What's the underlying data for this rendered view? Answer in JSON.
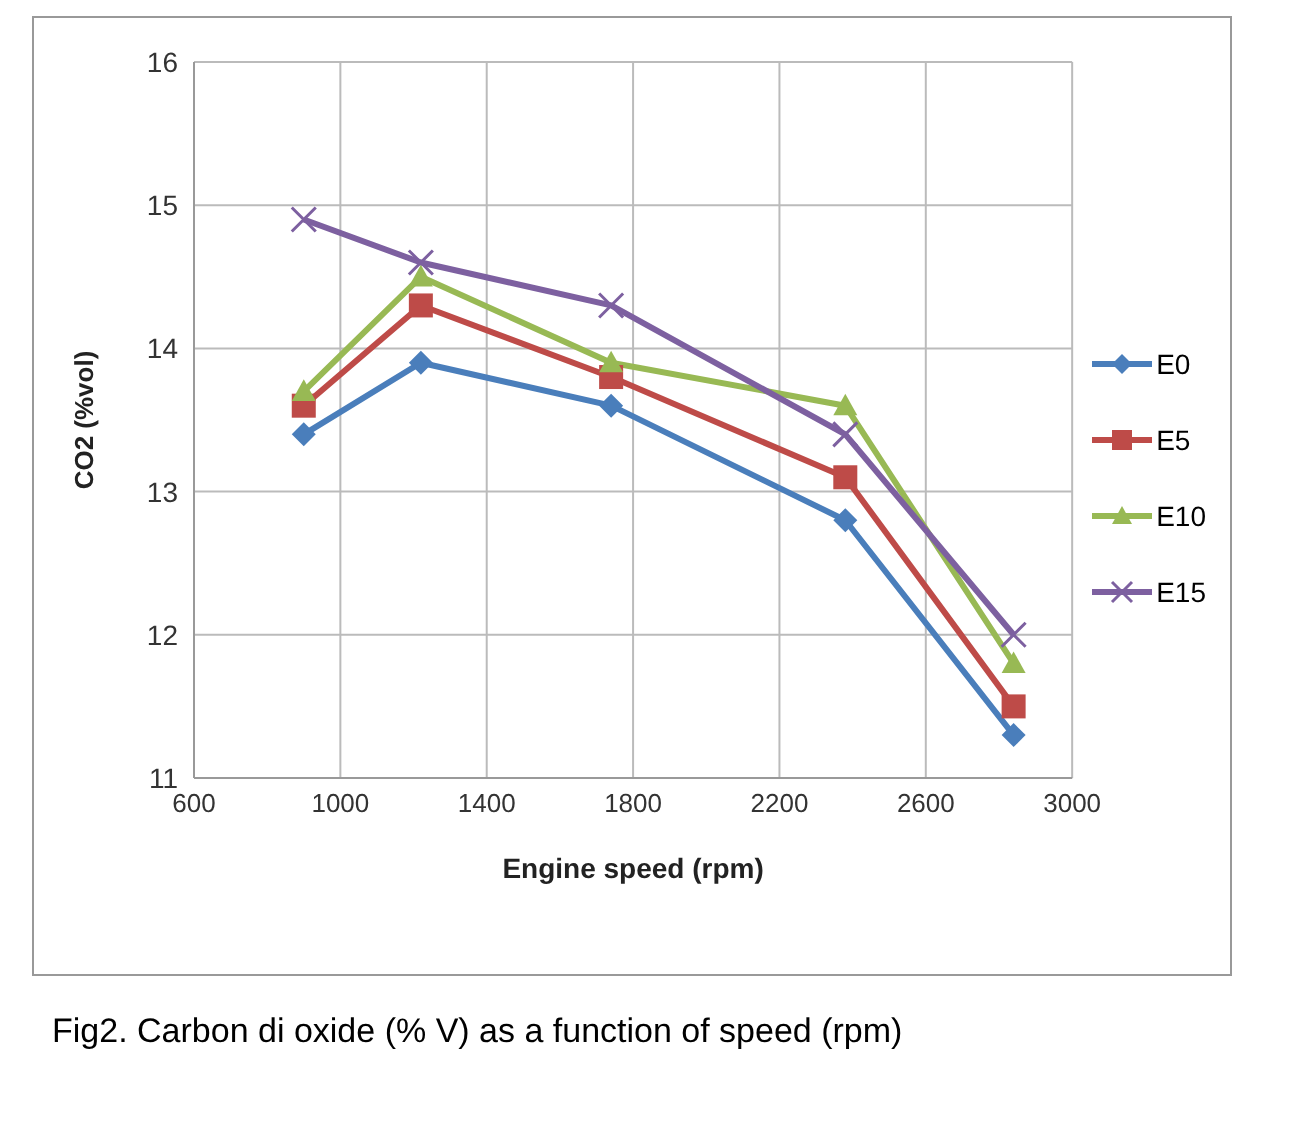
{
  "chart_data": {
    "type": "line",
    "xlabel": "Engine speed (rpm)",
    "ylabel": "CO2 (%vol)",
    "x": [
      900,
      1220,
      1740,
      2380,
      2840
    ],
    "series": [
      {
        "name": "E0",
        "color": "#4a7ebb",
        "marker": "diamond",
        "values": [
          13.4,
          13.9,
          13.6,
          12.8,
          11.3
        ]
      },
      {
        "name": "E5",
        "color": "#be4b48",
        "marker": "square",
        "values": [
          13.6,
          14.3,
          13.8,
          13.1,
          11.5
        ]
      },
      {
        "name": "E10",
        "color": "#98b954",
        "marker": "triangle",
        "values": [
          13.7,
          14.5,
          13.9,
          13.6,
          11.8
        ]
      },
      {
        "name": "E15",
        "color": "#7d60a0",
        "marker": "cross",
        "values": [
          14.9,
          14.6,
          14.3,
          13.4,
          12.0
        ]
      }
    ],
    "xlim": [
      600,
      3000
    ],
    "xticks": [
      600,
      1000,
      1400,
      1800,
      2200,
      2600,
      3000
    ],
    "ylim": [
      11,
      16
    ],
    "yticks": [
      11,
      12,
      13,
      14,
      15,
      16
    ],
    "grid": true,
    "legend": "right",
    "line_style": "solid",
    "annotations": [
      "Fig2. Carbon di oxide (% V) as a function of speed (rpm)"
    ]
  }
}
